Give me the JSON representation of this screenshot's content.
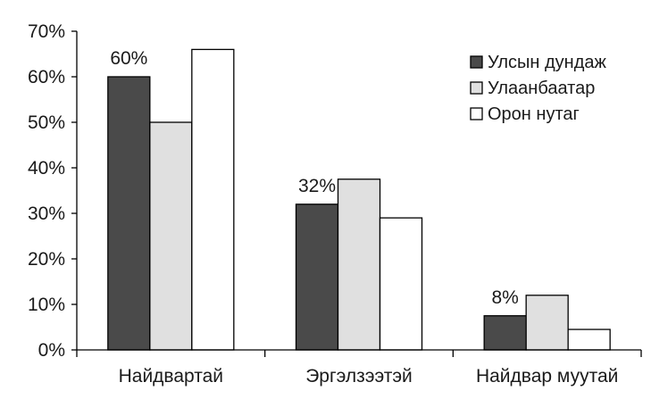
{
  "chart_data": {
    "type": "bar",
    "categories": [
      "Найдвартай",
      "Эргэлзээтэй",
      "Найдвар муутай"
    ],
    "series": [
      {
        "name": "Улсын дундаж",
        "values": [
          60,
          32,
          7.5
        ],
        "color": "#4a4a4a"
      },
      {
        "name": "Улаанбаатар",
        "values": [
          50,
          37.5,
          12
        ],
        "color": "#e0e0e0"
      },
      {
        "name": "Орон нутаг",
        "values": [
          66,
          29,
          4.5
        ],
        "color": "#ffffff"
      }
    ],
    "y_ticks": [
      "0%",
      "10%",
      "20%",
      "30%",
      "40%",
      "50%",
      "60%",
      "70%"
    ],
    "ylim": [
      0,
      70
    ],
    "data_labels": [
      {
        "category_index": 0,
        "series_index": 0,
        "text": "60%"
      },
      {
        "category_index": 1,
        "series_index": 0,
        "text": "32%"
      },
      {
        "category_index": 2,
        "series_index": 0,
        "text": "8%"
      }
    ],
    "legend_position": "top-right",
    "grid": false,
    "title": "",
    "xlabel": "",
    "ylabel": ""
  }
}
